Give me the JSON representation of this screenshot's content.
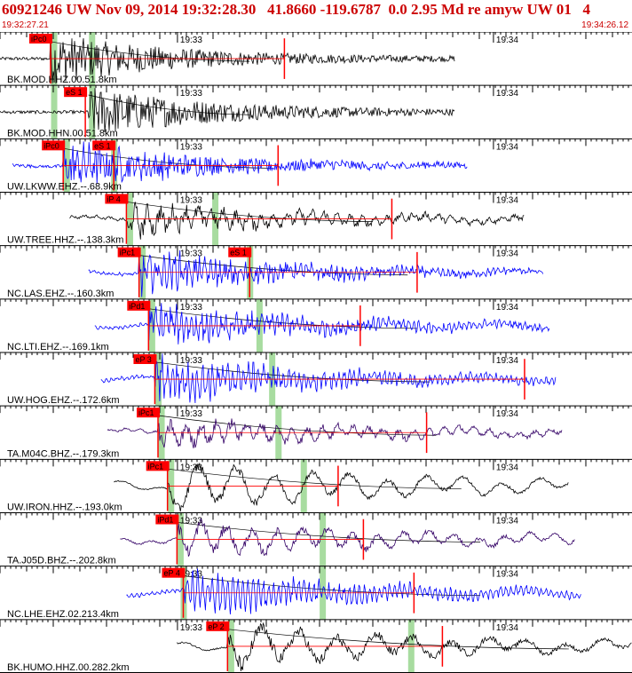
{
  "header": {
    "title": "60921246 UW Nov 09, 2014 19:32:28.30   41.8660 -119.6787  0.0 2.95 Md re amyw UW 01   4",
    "start_time": "19:32:27.21",
    "end_time": "19:34:26.12"
  },
  "time_ticks": [
    "19:33",
    "19:34"
  ],
  "colors": {
    "pick": "#ff0000",
    "pick_label_bg": "#ff0000",
    "phase_window": "#a8dca0",
    "grid": "#000000",
    "title": "#cc0000"
  },
  "traces": [
    {
      "label": "BK.MOD.HHZ.00.51.8km",
      "color": "#000000",
      "start": 0.0,
      "end": 0.72,
      "onset": 0.08,
      "amp": 0.45,
      "decay": 1.0,
      "period": 0.004,
      "picks": [
        {
          "label": "iPc0",
          "t": 0.08
        }
      ],
      "marker": 0.45,
      "windows": [
        0.085,
        0.145
      ]
    },
    {
      "label": "BK.MOD.HHN.00.51.8km",
      "color": "#000000",
      "start": 0.0,
      "end": 0.72,
      "onset": 0.14,
      "amp": 0.45,
      "decay": 1.0,
      "period": 0.004,
      "picks": [
        {
          "label": "eS 1",
          "t": 0.135
        }
      ],
      "marker": null,
      "windows": [
        0.085,
        0.145
      ]
    },
    {
      "label": "UW.LKWW.EHZ.--.68.9km",
      "color": "#0000ff",
      "start": 0.02,
      "end": 0.74,
      "onset": 0.1,
      "amp": 0.5,
      "decay": 0.8,
      "period": 0.004,
      "picks": [
        {
          "label": "iPc0",
          "t": 0.1
        },
        {
          "label": "eS 1",
          "t": 0.18
        }
      ],
      "marker": 0.44,
      "windows": [
        0.105,
        0.18
      ]
    },
    {
      "label": "UW.TREE.HHZ.--.138.3km",
      "color": "#000000",
      "start": 0.11,
      "end": 0.83,
      "onset": 0.2,
      "amp": 0.35,
      "decay": 0.5,
      "period": 0.01,
      "picks": [
        {
          "label": "iP 4",
          "t": 0.2
        }
      ],
      "marker": 0.62,
      "windows": [
        0.205,
        0.34
      ]
    },
    {
      "label": "NC.LAS.EHZ.--.160.3km",
      "color": "#0000ff",
      "start": 0.14,
      "end": 0.86,
      "onset": 0.22,
      "amp": 0.45,
      "decay": 0.6,
      "period": 0.004,
      "picks": [
        {
          "label": "iPc1",
          "t": 0.22
        },
        {
          "label": "eS 1",
          "t": 0.395
        }
      ],
      "marker": 0.66,
      "windows": [
        0.225,
        0.395
      ]
    },
    {
      "label": "NC.LTI.EHZ.--.169.1km",
      "color": "#0000ff",
      "start": 0.15,
      "end": 0.87,
      "onset": 0.235,
      "amp": 0.45,
      "decay": 0.5,
      "period": 0.004,
      "picks": [
        {
          "label": "iPd1",
          "t": 0.235
        }
      ],
      "marker": 0.57,
      "windows": [
        0.24,
        0.41
      ]
    },
    {
      "label": "UW.HOG.EHZ.--.172.6km",
      "color": "#0000ff",
      "start": 0.16,
      "end": 0.88,
      "onset": 0.245,
      "amp": 0.5,
      "decay": 0.5,
      "period": 0.004,
      "picks": [
        {
          "label": "eP 3",
          "t": 0.245
        }
      ],
      "marker": 0.83,
      "windows": [
        0.25,
        0.43
      ]
    },
    {
      "label": "TA.M04C.BHZ.--.179.3km",
      "color": "#330066",
      "start": 0.17,
      "end": 0.89,
      "onset": 0.25,
      "amp": 0.3,
      "decay": 0.4,
      "period": 0.012,
      "picks": [
        {
          "label": "iPc1",
          "t": 0.25
        }
      ],
      "marker": 0.675,
      "windows": [
        0.255,
        0.44
      ]
    },
    {
      "label": "UW.IRON.HHZ.--.193.0km",
      "color": "#000000",
      "start": 0.18,
      "end": 0.9,
      "onset": 0.265,
      "amp": 0.45,
      "decay": 0.2,
      "period": 0.03,
      "picks": [
        {
          "label": "iPc1",
          "t": 0.265
        }
      ],
      "marker": 0.535,
      "windows": [
        0.27,
        0.48
      ]
    },
    {
      "label": "TA.J05D.BHZ.--.202.8km",
      "color": "#330066",
      "start": 0.19,
      "end": 0.91,
      "onset": 0.28,
      "amp": 0.35,
      "decay": 0.3,
      "period": 0.02,
      "picks": [
        {
          "label": "iPd1",
          "t": 0.28
        }
      ],
      "marker": 0.575,
      "windows": [
        0.285,
        0.51
      ]
    },
    {
      "label": "NC.LHE.EHZ.02.213.4km",
      "color": "#0000ff",
      "start": 0.2,
      "end": 0.92,
      "onset": 0.29,
      "amp": 0.45,
      "decay": 0.4,
      "period": 0.004,
      "picks": [
        {
          "label": "eP 4",
          "t": 0.29
        }
      ],
      "marker": 0.655,
      "windows": [
        0.29,
        0.51
      ]
    },
    {
      "label": "BK.HUMO.HHZ.00.282.2km",
      "color": "#000000",
      "start": 0.28,
      "end": 1.0,
      "onset": 0.36,
      "amp": 0.45,
      "decay": 0.3,
      "period": 0.03,
      "picks": [
        {
          "label": "eP 2",
          "t": 0.36
        }
      ],
      "marker": 0.7,
      "windows": [
        0.365,
        0.65
      ]
    }
  ]
}
